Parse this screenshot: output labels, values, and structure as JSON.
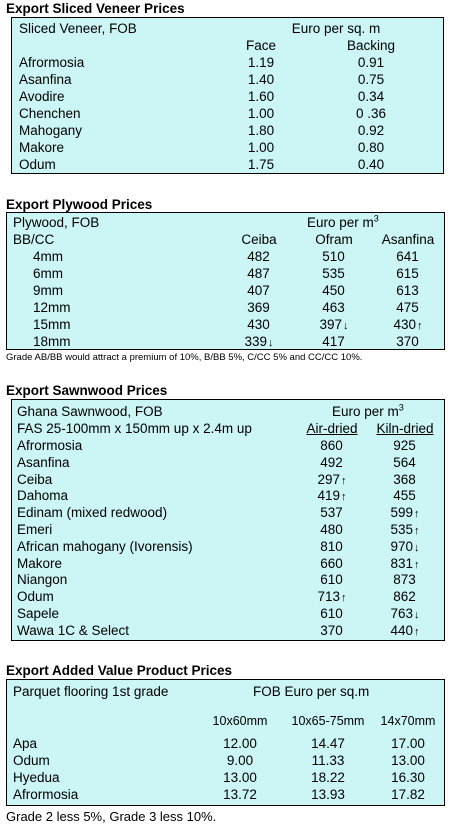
{
  "veneer": {
    "title": "Export Sliced Veneer Prices",
    "subtitle": "Sliced Veneer, FOB",
    "unit": "Euro per sq. m",
    "cols": [
      "Face",
      "Backing"
    ],
    "rows": [
      {
        "name": "Afrormosia",
        "face": "1.19",
        "backing": "0.91"
      },
      {
        "name": "Asanfina",
        "face": "1.40",
        "backing": "0.75"
      },
      {
        "name": "Avodire",
        "face": "1.60",
        "backing": "0.34"
      },
      {
        "name": "Chenchen",
        "face": "1.00",
        "backing": "0 .36"
      },
      {
        "name": "Mahogany",
        "face": "1.80",
        "backing": "0.92"
      },
      {
        "name": "Makore",
        "face": "1.00",
        "backing": "0.80"
      },
      {
        "name": "Odum",
        "face": "1.75",
        "backing": "0.40"
      }
    ]
  },
  "plywood": {
    "title": "Export Plywood Prices",
    "subtitle": "Plywood, FOB",
    "unit": "Euro per m",
    "unit_sup": "3",
    "grade": "BB/CC",
    "cols": [
      "Ceiba",
      "Ofram",
      "Asanfina"
    ],
    "rows": [
      {
        "name": "4mm",
        "v": [
          "482",
          "510",
          "641"
        ],
        "a": [
          "",
          "",
          ""
        ]
      },
      {
        "name": "6mm",
        "v": [
          "487",
          "535",
          "615"
        ],
        "a": [
          "",
          "",
          ""
        ]
      },
      {
        "name": "9mm",
        "v": [
          "407",
          "450",
          "613"
        ],
        "a": [
          "",
          "",
          ""
        ]
      },
      {
        "name": "12mm",
        "v": [
          "369",
          "463",
          "475"
        ],
        "a": [
          "",
          "",
          ""
        ]
      },
      {
        "name": "15mm",
        "v": [
          "430",
          "397",
          "430"
        ],
        "a": [
          "",
          "↓",
          "↑"
        ]
      },
      {
        "name": "18mm",
        "v": [
          "339",
          "417",
          "370"
        ],
        "a": [
          "↓",
          "",
          ""
        ]
      }
    ],
    "note": "Grade AB/BB would attract a premium of 10%, B/BB 5%, C/CC 5% and CC/CC 10%."
  },
  "sawn": {
    "title": "Export Sawnwood Prices",
    "subtitle": "Ghana Sawnwood, FOB",
    "unit": "Euro per m",
    "unit_sup": "3",
    "spec": "FAS 25-100mm x 150mm up x 2.4m up",
    "cols": [
      "Air-dried",
      "Kiln-dried"
    ],
    "rows": [
      {
        "name": "Afrormosia",
        "air": "860",
        "aa": "",
        "kiln": "925",
        "ka": ""
      },
      {
        "name": "Asanfina",
        "air": "492",
        "aa": "",
        "kiln": "564",
        "ka": ""
      },
      {
        "name": "Ceiba",
        "air": "297",
        "aa": "↑",
        "kiln": "368",
        "ka": ""
      },
      {
        "name": "Dahoma",
        "air": "419",
        "aa": "↑",
        "kiln": "455",
        "ka": ""
      },
      {
        "name": "Edinam (mixed redwood)",
        "air": "537",
        "aa": "",
        "kiln": "599",
        "ka": "↑"
      },
      {
        "name": "Emeri",
        "air": "480",
        "aa": "",
        "kiln": "535",
        "ka": "↑"
      },
      {
        "name": "African mahogany (Ivorensis)",
        "air": "810",
        "aa": "",
        "kiln": "970",
        "ka": "↓"
      },
      {
        "name": "Makore",
        "air": "660",
        "aa": "",
        "kiln": "831",
        "ka": "↑"
      },
      {
        "name": "Niangon",
        "air": "610",
        "aa": "",
        "kiln": "873",
        "ka": ""
      },
      {
        "name": "Odum",
        "air": "713",
        "aa": "↑",
        "kiln": "862",
        "ka": ""
      },
      {
        "name": "Sapele",
        "air": "610",
        "aa": "",
        "kiln": "763",
        "ka": "↓"
      },
      {
        "name": "Wawa 1C & Select",
        "air": "370",
        "aa": "",
        "kiln": "440",
        "ka": "↑"
      }
    ]
  },
  "parquet": {
    "title": "Export Added Value Product Prices",
    "subtitle": "Parquet flooring 1st grade",
    "unit": "FOB Euro per sq.m",
    "cols": [
      "10x60mm",
      "10x65-75mm",
      "14x70mm"
    ],
    "rows": [
      {
        "name": "Apa",
        "v": [
          "12.00",
          "14.47",
          "17.00"
        ]
      },
      {
        "name": "Odum",
        "v": [
          "9.00",
          "11.33",
          "13.00"
        ]
      },
      {
        "name": "Hyedua",
        "v": [
          "13.00",
          "18.22",
          "16.30"
        ]
      },
      {
        "name": "Afrormosia",
        "v": [
          "13.72",
          "13.93",
          "17.82"
        ]
      }
    ],
    "note": "Grade 2 less 5%, Grade 3 less 10%."
  }
}
